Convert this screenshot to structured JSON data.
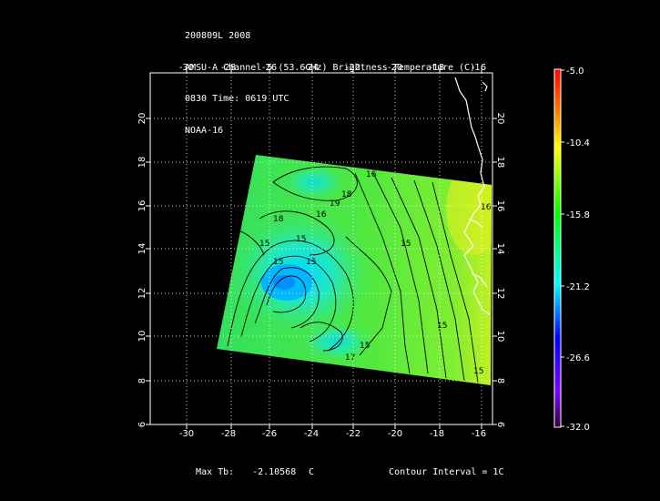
{
  "header": {
    "line1": "200809L 2008",
    "line2": "AMSU-A Channel 5 (53.6GHz) Brightness Temperature (C)",
    "line3": "0830 Time: 0619 UTC",
    "line4": "NOAA-16"
  },
  "map": {
    "lon_ticks_top": [
      "-30",
      "-28",
      "-26",
      "-24",
      "-22",
      "-20",
      "-18",
      "-16"
    ],
    "lon_ticks_bottom": [
      "-30",
      "-28",
      "-26",
      "-24",
      "-22",
      "-20",
      "-18",
      "-16"
    ],
    "lat_ticks_left": [
      "6",
      "8",
      "10",
      "12",
      "14",
      "16",
      "18",
      "20"
    ],
    "lat_ticks_right": [
      "6",
      "8",
      "10",
      "12",
      "14",
      "16",
      "18",
      "20"
    ],
    "lon_range": [
      -31.6,
      -15.7
    ],
    "lat_range": [
      6.0,
      22.2
    ],
    "contour_labels": [
      "15",
      "18",
      "15",
      "15",
      "15",
      "16",
      "18",
      "19",
      "16",
      "15",
      "15",
      "15",
      "17",
      "16",
      "15"
    ],
    "grid": true
  },
  "colorbar": {
    "labels": [
      "-5.0",
      "-10.4",
      "-15.8",
      "-21.2",
      "-26.6",
      "-32.0"
    ],
    "range": [
      -32.0,
      -5.0
    ],
    "colors": [
      "#ff0000",
      "#ffa000",
      "#ffff00",
      "#00ff00",
      "#00ffff",
      "#0000ff",
      "#8000c0",
      "#400040"
    ]
  },
  "footer": {
    "max_label": "Max Tb:",
    "max_value": "-2.10568",
    "max_unit": "C",
    "contour_interval": "Contour Interval = 1C"
  }
}
